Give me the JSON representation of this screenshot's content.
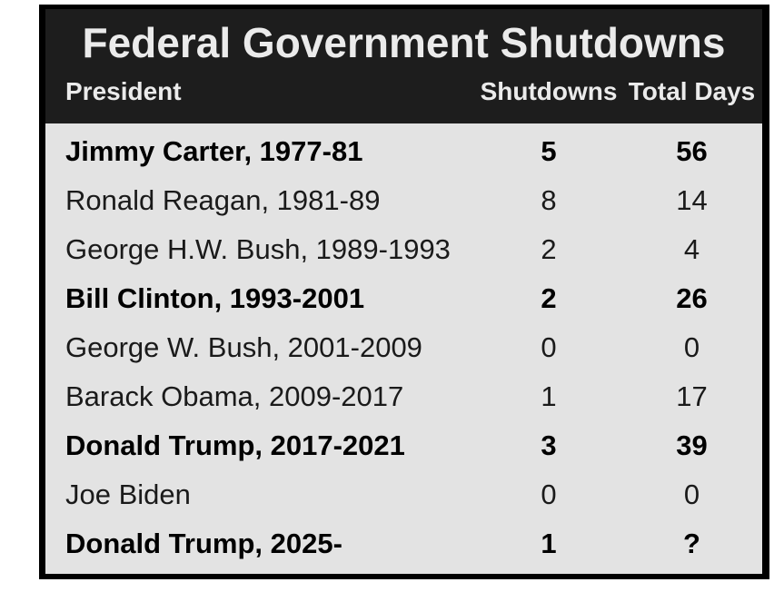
{
  "table": {
    "title": "Federal Government Shutdowns",
    "columns": [
      "President",
      "Shutdowns",
      "Total Days"
    ],
    "rows": [
      {
        "president": "Jimmy Carter, 1977-81",
        "shutdowns": "5",
        "total_days": "56",
        "bold": true
      },
      {
        "president": "Ronald Reagan, 1981-89",
        "shutdowns": "8",
        "total_days": "14",
        "bold": false
      },
      {
        "president": "George H.W. Bush, 1989-1993",
        "shutdowns": "2",
        "total_days": "4",
        "bold": false
      },
      {
        "president": "Bill Clinton, 1993-2001",
        "shutdowns": "2",
        "total_days": "26",
        "bold": true
      },
      {
        "president": "George W. Bush, 2001-2009",
        "shutdowns": "0",
        "total_days": "0",
        "bold": false
      },
      {
        "president": "Barack Obama, 2009-2017",
        "shutdowns": "1",
        "total_days": "17",
        "bold": false
      },
      {
        "president": "Donald Trump, 2017-2021",
        "shutdowns": "3",
        "total_days": "39",
        "bold": true
      },
      {
        "president": "Joe Biden",
        "shutdowns": "0",
        "total_days": "0",
        "bold": false
      },
      {
        "president": "Donald Trump, 2025-",
        "shutdowns": "1",
        "total_days": "?",
        "bold": true
      }
    ],
    "colors": {
      "page_bg": "#ffffff",
      "border": "#000000",
      "header_bg": "#1d1d1d",
      "header_text": "#ebebeb",
      "body_bg": "#e3e3e3",
      "body_text": "#1a1a1a",
      "body_text_bold": "#000000"
    }
  },
  "chart_data": {
    "type": "table",
    "title": "Federal Government Shutdowns",
    "columns": [
      "President",
      "Shutdowns",
      "Total Days"
    ],
    "rows": [
      [
        "Jimmy Carter, 1977-81",
        5,
        56
      ],
      [
        "Ronald Reagan, 1981-89",
        8,
        14
      ],
      [
        "George H.W. Bush, 1989-1993",
        2,
        4
      ],
      [
        "Bill Clinton, 1993-2001",
        2,
        26
      ],
      [
        "George W. Bush, 2001-2009",
        0,
        0
      ],
      [
        "Barack Obama, 2009-2017",
        1,
        17
      ],
      [
        "Donald Trump, 2017-2021",
        3,
        39
      ],
      [
        "Joe Biden",
        0,
        0
      ],
      [
        "Donald Trump, 2025-",
        1,
        "?"
      ]
    ],
    "notes": "Bold rows emphasize Carter, Clinton, Trump 2017-2021, Trump 2025-. Total days for Trump 2025- is unknown (?)."
  }
}
